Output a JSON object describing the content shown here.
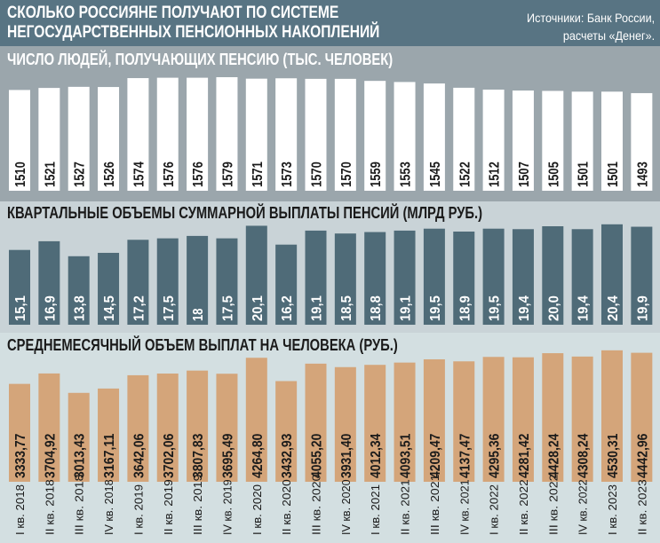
{
  "header": {
    "title_line1": "СКОЛЬКО РОССИЯНЕ ПОЛУЧАЮТ ПО СИСТЕМЕ",
    "title_line2": "НЕГОСУДАРСТВЕННЫХ ПЕНСИОННЫХ НАКОПЛЕНИЙ",
    "source_line1": "Источники: Банк России,",
    "source_line2": "расчеты «Денег»."
  },
  "colors": {
    "header": "#587483",
    "people_bars": "#ffffff",
    "payout_bars": "#4f6b78",
    "avg_bars": "#d4a57a"
  },
  "chart_data": [
    {
      "type": "bar",
      "title": "ЧИСЛО ЛЮДЕЙ, ПОЛУЧАЮЩИХ ПЕНСИЮ (ТЫС. ЧЕЛОВЕК)",
      "values": [
        1510,
        1521,
        1527,
        1526,
        1574,
        1576,
        1576,
        1579,
        1571,
        1573,
        1570,
        1570,
        1559,
        1553,
        1545,
        1522,
        1512,
        1507,
        1505,
        1501,
        1501,
        1493
      ],
      "labels": [
        "1510",
        "1521",
        "1527",
        "1526",
        "1574",
        "1576",
        "1576",
        "1579",
        "1571",
        "1573",
        "1570",
        "1570",
        "1559",
        "1553",
        "1545",
        "1522",
        "1512",
        "1507",
        "1505",
        "1501",
        "1501",
        "1493"
      ]
    },
    {
      "type": "bar",
      "title": "КВАРТАЛЬНЫЕ ОБЪЕМЫ СУММАРНОЙ ВЫПЛАТЫ ПЕНСИЙ (МЛРД РУБ.)",
      "values": [
        15.1,
        16.9,
        13.8,
        14.5,
        17.2,
        17.5,
        18,
        17.5,
        20.1,
        16.2,
        19.1,
        18.5,
        18.8,
        19.1,
        19.5,
        18.9,
        19.5,
        19.4,
        20.0,
        19.4,
        20.4,
        19.9
      ],
      "labels": [
        "15,1",
        "16,9",
        "13,8",
        "14,5",
        "17,2",
        "17,5",
        "18",
        "17,5",
        "20,1",
        "16,2",
        "19,1",
        "18,5",
        "18,8",
        "19,1",
        "19,5",
        "18,9",
        "19,5",
        "19,4",
        "20,0",
        "19,4",
        "20,4",
        "19,9"
      ]
    },
    {
      "type": "bar",
      "title": "СРЕДНЕМЕСЯЧНЫЙ ОБЪЕМ ВЫПЛАТ НА ЧЕЛОВЕКА (РУБ.)",
      "values": [
        3333.77,
        3704.92,
        3013.43,
        3167.11,
        3642.06,
        3702.06,
        3807.83,
        3695.49,
        4264.8,
        3432.93,
        4055.2,
        3931.4,
        4012.34,
        4093.51,
        4209.47,
        4137.47,
        4295.36,
        4281.42,
        4428.24,
        4308.24,
        4530.31,
        4442.96
      ],
      "labels": [
        "3333,77",
        "3704,92",
        "3013,43",
        "3167,11",
        "3642,06",
        "3702,06",
        "3807,83",
        "3695,49",
        "4264,80",
        "3432,93",
        "4055,20",
        "3931,40",
        "4012,34",
        "4093,51",
        "4209,47",
        "4137,47",
        "4295,36",
        "4281,42",
        "4428,24",
        "4308,24",
        "4530,31",
        "4442,96"
      ]
    }
  ],
  "categories": [
    "I кв. 2018",
    "II кв. 2018",
    "III кв. 2018",
    "IV кв. 2018",
    "I кв. 2019",
    "II кв. 2019",
    "III кв. 2019",
    "IV кв. 2019",
    "I кв. 2020",
    "II кв. 2020",
    "III кв. 2020",
    "IV кв. 2020",
    "I кв. 2021",
    "II кв. 2021",
    "III кв. 2021",
    "IV кв. 2021",
    "I кв. 2022",
    "II кв. 2022",
    "III кв. 2022",
    "IV кв. 2022",
    "I кв. 2023",
    "II кв. 2023"
  ]
}
